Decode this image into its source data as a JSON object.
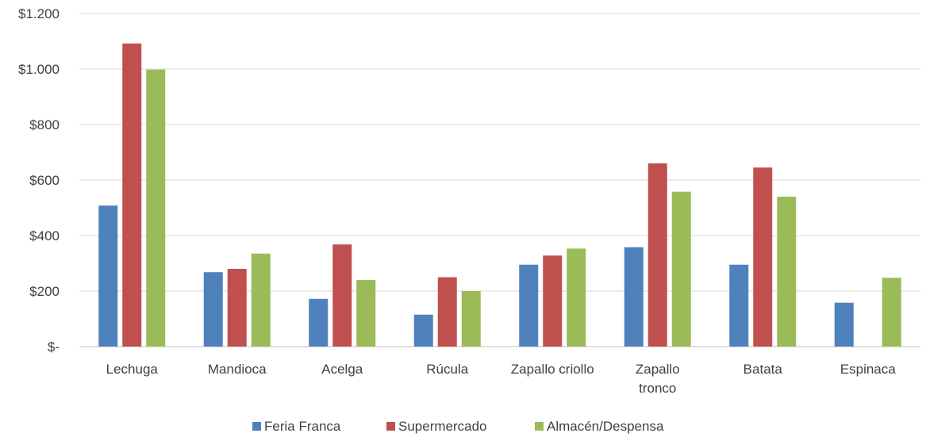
{
  "chart_data": {
    "type": "bar",
    "title": "",
    "xlabel": "",
    "ylabel": "",
    "ylim": [
      0,
      1200
    ],
    "yticks": [
      0,
      200,
      400,
      600,
      800,
      1000,
      1200
    ],
    "ytick_labels": [
      "$-",
      "$200",
      "$400",
      "$600",
      "$800",
      "$1.000",
      "$1.200"
    ],
    "grid": true,
    "legend_position": "bottom",
    "categories": [
      "Lechuga",
      "Mandioca",
      "Acelga",
      "Rúcula",
      "Zapallo criollo",
      "Zapallo tronco",
      "Batata",
      "Espinaca"
    ],
    "category_label_lines": [
      [
        "Lechuga"
      ],
      [
        "Mandioca"
      ],
      [
        "Acelga"
      ],
      [
        "Rúcula"
      ],
      [
        "Zapallo criollo"
      ],
      [
        "Zapallo",
        "tronco"
      ],
      [
        "Batata"
      ],
      [
        "Espinaca"
      ]
    ],
    "series": [
      {
        "name": "Feria Franca",
        "color": "#4F81BD",
        "values": [
          508,
          268,
          172,
          115,
          295,
          358,
          295,
          158
        ]
      },
      {
        "name": "Supermercado",
        "color": "#C0504D",
        "values": [
          1092,
          280,
          368,
          250,
          328,
          660,
          645,
          null
        ]
      },
      {
        "name": "Almacén/Despensa",
        "color": "#9BBB59",
        "values": [
          998,
          335,
          240,
          200,
          353,
          558,
          540,
          248
        ]
      }
    ]
  }
}
